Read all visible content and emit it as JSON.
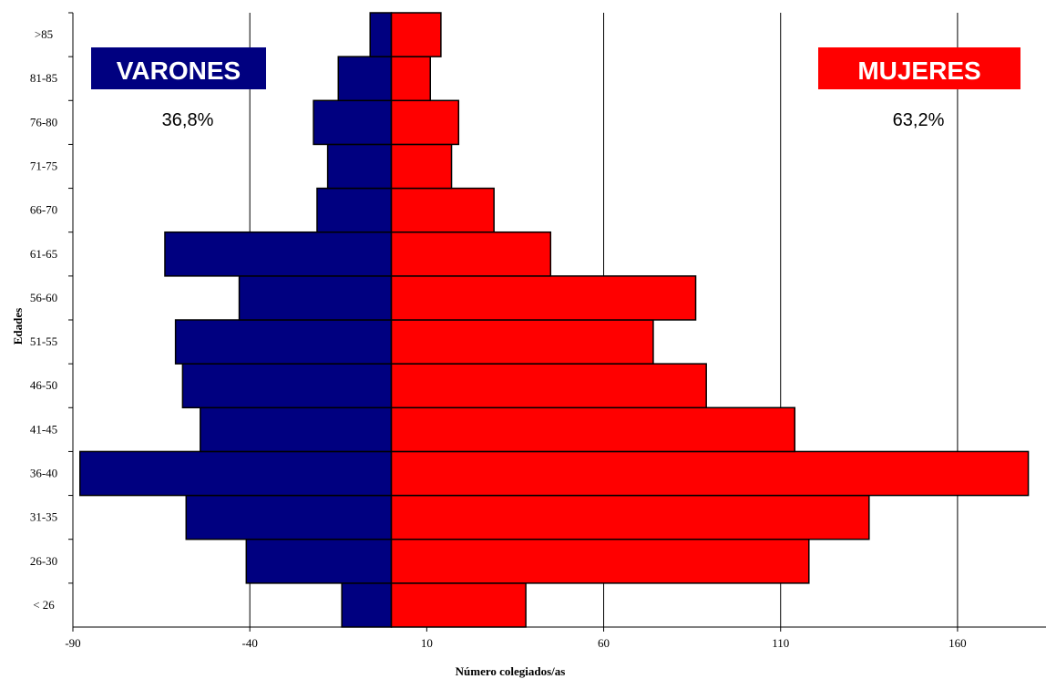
{
  "chart_data": {
    "type": "bar",
    "orientation": "horizontal",
    "categories": [
      "< 26",
      "26-30",
      "31-35",
      "36-40",
      "41-45",
      "46-50",
      "51-55",
      "56-60",
      "61-65",
      "66-70",
      "71-75",
      "76-80",
      "81-85",
      ">85"
    ],
    "series": [
      {
        "name": "VARONES",
        "color": "#000080",
        "values": [
          -14,
          -41,
          -58,
          -88,
          -54,
          -59,
          -61,
          -43,
          -64,
          -21,
          -18,
          -22,
          -15,
          -6
        ]
      },
      {
        "name": "MUJERES",
        "color": "#ff0000",
        "values": [
          38,
          118,
          135,
          180,
          114,
          89,
          74,
          86,
          45,
          29,
          17,
          19,
          11,
          14
        ]
      }
    ],
    "xlabel": "Número colegiados/as",
    "ylabel": "Edades",
    "xlim": [
      -90,
      185
    ],
    "xticks": [
      -90,
      -40,
      10,
      60,
      110,
      160
    ],
    "xtick_labels": [
      "-90",
      "-40",
      "10",
      "60",
      "110",
      "160"
    ],
    "grid": "vertical",
    "annotations": {
      "male_label": "VARONES",
      "male_pct": "36,8%",
      "female_label": "MUJERES",
      "female_pct": "63,2%"
    }
  }
}
